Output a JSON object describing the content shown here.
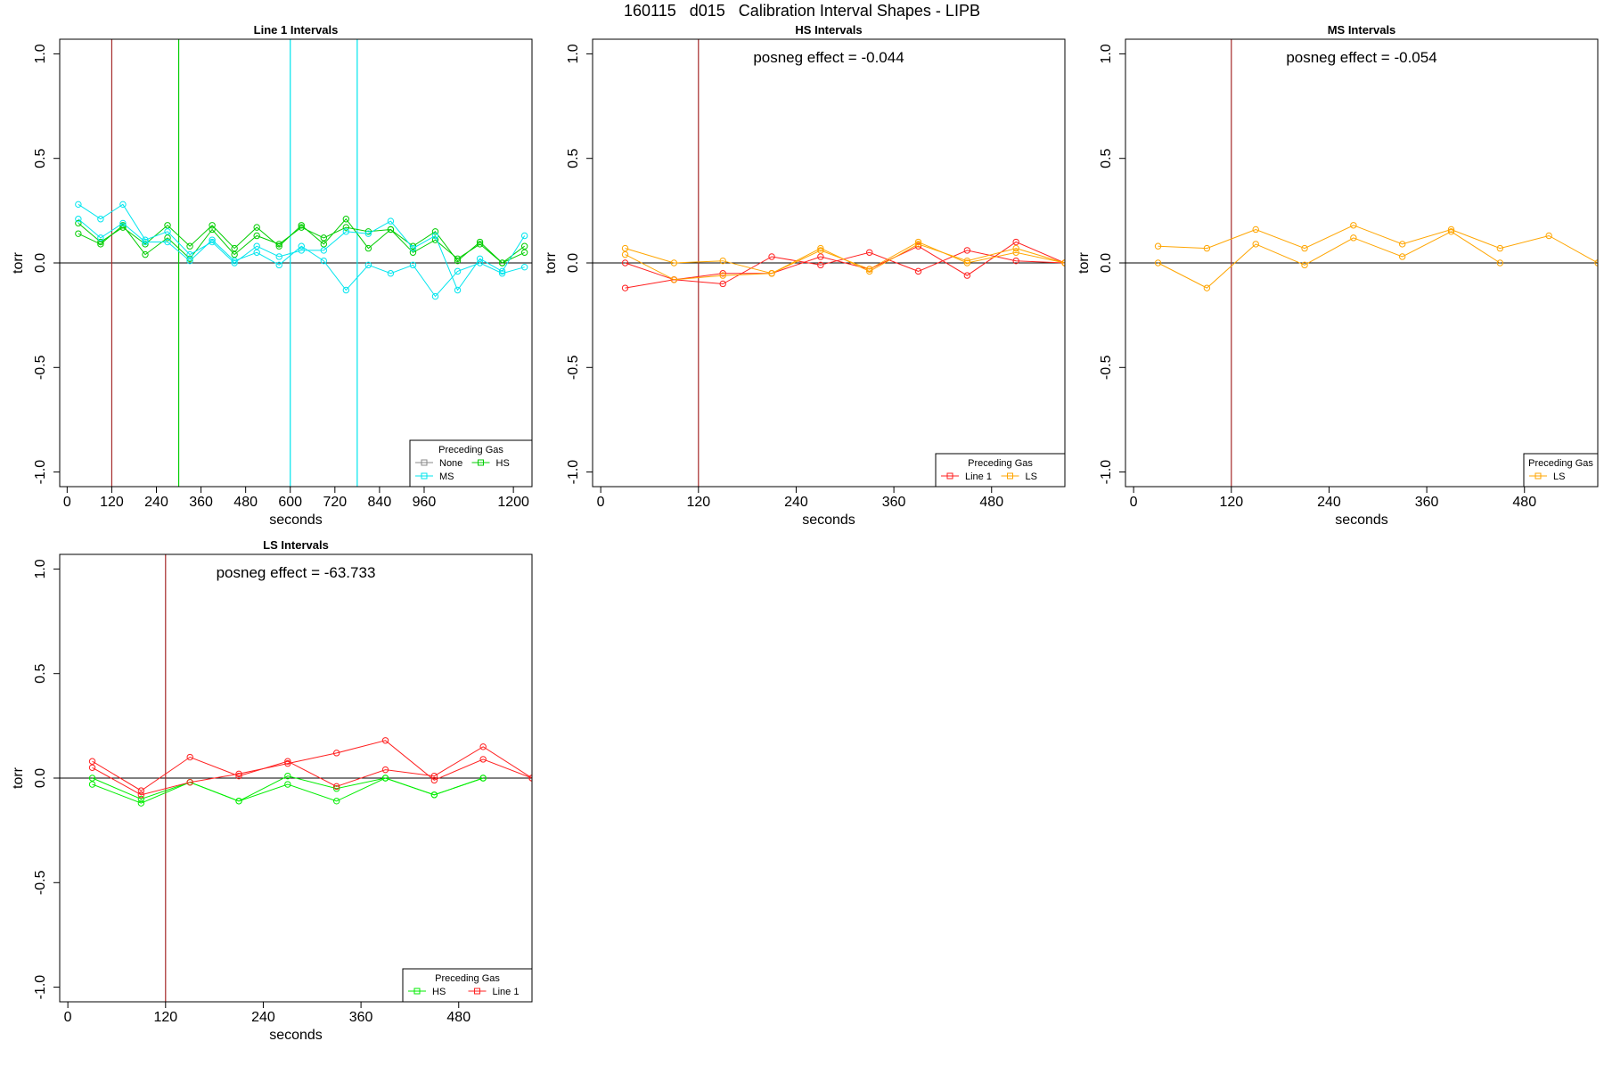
{
  "figure": {
    "title": "160115   d015   Calibration Interval Shapes - LIPB"
  },
  "chart_data": [
    {
      "type": "line",
      "title": "Line 1 Intervals",
      "xlabel": "seconds",
      "ylabel": "torr",
      "xlim": [
        -20,
        1250
      ],
      "ylim": [
        -1.07,
        1.07
      ],
      "xticks": [
        0,
        120,
        240,
        360,
        480,
        600,
        720,
        840,
        960,
        1200
      ],
      "yticks": [
        -1.0,
        -0.5,
        0.0,
        0.5,
        1.0
      ],
      "ytick_labels": [
        "-1.0",
        "-0.5",
        "0.0",
        "0.5",
        "1.0"
      ],
      "hline": 0,
      "vlines": [
        {
          "x": 120,
          "color": "#a52a2a"
        },
        {
          "x": 300,
          "color": "#00cd00"
        },
        {
          "x": 600,
          "color": "#00e5ee"
        },
        {
          "x": 780,
          "color": "#00e5ee"
        }
      ],
      "annotation": "",
      "legend": {
        "title": "Preceding Gas",
        "position": "bottom-right",
        "columns": 2,
        "entries": [
          {
            "name": "None",
            "color": "#888888"
          },
          {
            "name": "HS",
            "color": "#00cd00"
          },
          {
            "name": "MS",
            "color": "#00e5ee"
          }
        ]
      },
      "series": [
        {
          "name": "HS",
          "color": "#00cd00",
          "x": [
            30,
            90,
            150,
            210,
            270,
            330,
            390,
            450,
            510,
            570,
            630,
            690,
            750,
            810,
            870,
            930,
            990,
            1050,
            1110,
            1170,
            1230
          ],
          "y": [
            0.19,
            0.1,
            0.17,
            0.09,
            0.18,
            0.08,
            0.18,
            0.07,
            0.17,
            0.08,
            0.18,
            0.09,
            0.21,
            0.07,
            0.16,
            0.08,
            0.15,
            0.01,
            0.1,
            0.0,
            0.08
          ]
        },
        {
          "name": "HS",
          "color": "#00cd00",
          "x": [
            30,
            90,
            150,
            210,
            270,
            330,
            390,
            450,
            510,
            570,
            630,
            690,
            750,
            810,
            870,
            930,
            990,
            1050,
            1110,
            1170,
            1230
          ],
          "y": [
            0.14,
            0.09,
            0.18,
            0.04,
            0.12,
            0.02,
            0.16,
            0.04,
            0.13,
            0.09,
            0.17,
            0.12,
            0.17,
            0.15,
            0.16,
            0.05,
            0.11,
            0.02,
            0.09,
            0.0,
            0.05
          ]
        },
        {
          "name": "MS",
          "color": "#00e5ee",
          "x": [
            30,
            90,
            150,
            210,
            270,
            330,
            390,
            450,
            510,
            570,
            630,
            690,
            750,
            810,
            870,
            930,
            990,
            1050,
            1110,
            1170,
            1230
          ],
          "y": [
            0.28,
            0.21,
            0.28,
            0.11,
            0.15,
            0.04,
            0.1,
            0.0,
            0.08,
            0.03,
            0.06,
            0.06,
            0.15,
            0.14,
            0.2,
            0.07,
            0.13,
            -0.13,
            0.02,
            -0.04,
            0.13
          ]
        },
        {
          "name": "MS",
          "color": "#00e5ee",
          "x": [
            30,
            90,
            150,
            210,
            270,
            330,
            390,
            450,
            510,
            570,
            630,
            690,
            750,
            810,
            870,
            930,
            990,
            1050,
            1110,
            1170,
            1230
          ],
          "y": [
            0.21,
            0.12,
            0.19,
            0.1,
            0.1,
            0.01,
            0.11,
            0.01,
            0.05,
            -0.01,
            0.08,
            0.01,
            -0.13,
            -0.01,
            -0.05,
            -0.01,
            -0.16,
            -0.04,
            0.0,
            -0.05,
            -0.02
          ]
        }
      ]
    },
    {
      "type": "line",
      "title": "HS Intervals",
      "xlabel": "seconds",
      "ylabel": "torr",
      "xlim": [
        -10,
        570
      ],
      "ylim": [
        -1.07,
        1.07
      ],
      "xticks": [
        0,
        120,
        240,
        360,
        480
      ],
      "yticks": [
        -1.0,
        -0.5,
        0.0,
        0.5,
        1.0
      ],
      "ytick_labels": [
        "-1.0",
        "-0.5",
        "0.0",
        "0.5",
        "1.0"
      ],
      "hline": 0,
      "vlines": [
        {
          "x": 120,
          "color": "#a52a2a"
        }
      ],
      "annotation": "posneg effect = -0.044",
      "legend": {
        "title": "Preceding Gas",
        "position": "bottom-right",
        "columns": 2,
        "entries": [
          {
            "name": "Line 1",
            "color": "#ff2020"
          },
          {
            "name": "LS",
            "color": "#ffa500"
          }
        ]
      },
      "series": [
        {
          "name": "Line 1",
          "color": "#ff2020",
          "x": [
            30,
            90,
            150,
            210,
            270,
            330,
            390,
            450,
            510,
            570
          ],
          "y": [
            -0.12,
            -0.08,
            -0.1,
            0.03,
            -0.01,
            0.05,
            -0.04,
            0.06,
            0.01,
            0.0
          ]
        },
        {
          "name": "Line 1",
          "color": "#ff2020",
          "x": [
            30,
            90,
            150,
            210,
            270,
            330,
            390,
            450,
            510,
            570
          ],
          "y": [
            0.0,
            -0.08,
            -0.05,
            -0.05,
            0.03,
            -0.03,
            0.08,
            -0.06,
            0.1,
            0.0
          ]
        },
        {
          "name": "LS",
          "color": "#ffa500",
          "x": [
            30,
            90,
            150,
            210,
            270,
            330,
            390,
            450,
            510,
            570
          ],
          "y": [
            0.07,
            0.0,
            0.01,
            -0.05,
            0.07,
            -0.04,
            0.09,
            0.01,
            0.07,
            0.0
          ]
        },
        {
          "name": "LS",
          "color": "#ffa500",
          "x": [
            30,
            90,
            150,
            210,
            270,
            330,
            390,
            450,
            510,
            570
          ],
          "y": [
            0.04,
            -0.08,
            -0.06,
            -0.05,
            0.06,
            -0.03,
            0.1,
            0.0,
            0.05,
            0.0
          ]
        }
      ]
    },
    {
      "type": "line",
      "title": "MS Intervals",
      "xlabel": "seconds",
      "ylabel": "torr",
      "xlim": [
        -10,
        570
      ],
      "ylim": [
        -1.07,
        1.07
      ],
      "xticks": [
        0,
        120,
        240,
        360,
        480
      ],
      "yticks": [
        -1.0,
        -0.5,
        0.0,
        0.5,
        1.0
      ],
      "ytick_labels": [
        "-1.0",
        "-0.5",
        "0.0",
        "0.5",
        "1.0"
      ],
      "hline": 0,
      "vlines": [
        {
          "x": 120,
          "color": "#a52a2a"
        }
      ],
      "annotation": "posneg effect = -0.054",
      "legend": {
        "title": "Preceding Gas",
        "position": "bottom-right",
        "columns": 1,
        "entries": [
          {
            "name": "LS",
            "color": "#ffa500"
          }
        ]
      },
      "series": [
        {
          "name": "LS",
          "color": "#ffa500",
          "x": [
            30,
            90,
            150,
            210,
            270,
            330,
            390,
            450,
            510,
            570
          ],
          "y": [
            0.08,
            0.07,
            0.16,
            0.07,
            0.18,
            0.09,
            0.16,
            0.07,
            0.13,
            0.0
          ]
        },
        {
          "name": "LS",
          "color": "#ffa500",
          "x": [
            30,
            90,
            150,
            210,
            270,
            330,
            390,
            450
          ],
          "y": [
            0.0,
            -0.12,
            0.09,
            -0.01,
            0.12,
            0.03,
            0.15,
            0.0
          ]
        }
      ]
    },
    {
      "type": "line",
      "title": "LS Intervals",
      "xlabel": "seconds",
      "ylabel": "torr",
      "xlim": [
        -10,
        570
      ],
      "ylim": [
        -1.07,
        1.07
      ],
      "xticks": [
        0,
        120,
        240,
        360,
        480
      ],
      "yticks": [
        -1.0,
        -0.5,
        0.0,
        0.5,
        1.0
      ],
      "ytick_labels": [
        "-1.0",
        "-0.5",
        "0.0",
        "0.5",
        "1.0"
      ],
      "hline": 0,
      "vlines": [
        {
          "x": 120,
          "color": "#a52a2a"
        }
      ],
      "annotation": "posneg effect = -63.733",
      "legend": {
        "title": "Preceding Gas",
        "position": "bottom-right",
        "columns": 2,
        "entries": [
          {
            "name": "HS",
            "color": "#00ee00"
          },
          {
            "name": "Line 1",
            "color": "#ff2020"
          }
        ]
      },
      "series": [
        {
          "name": "HS",
          "color": "#00ee00",
          "x": [
            30,
            90,
            150,
            210,
            270,
            330,
            390,
            450,
            510
          ],
          "y": [
            -0.03,
            -0.12,
            -0.02,
            -0.11,
            -0.03,
            -0.11,
            0.0,
            -0.08,
            0.0
          ]
        },
        {
          "name": "HS",
          "color": "#00ee00",
          "x": [
            30,
            90,
            150,
            210,
            270,
            330,
            390,
            450,
            510
          ],
          "y": [
            0.0,
            -0.1,
            -0.02,
            -0.11,
            0.01,
            -0.05,
            0.0,
            -0.08,
            0.0
          ]
        },
        {
          "name": "Line 1",
          "color": "#ff2020",
          "x": [
            30,
            90,
            150,
            210,
            270,
            330,
            390,
            450,
            510,
            570
          ],
          "y": [
            0.08,
            -0.06,
            0.1,
            0.01,
            0.08,
            -0.04,
            0.04,
            0.01,
            0.15,
            0.0
          ]
        },
        {
          "name": "Line 1",
          "color": "#ff2020",
          "x": [
            30,
            90,
            150,
            210,
            270,
            330,
            390,
            450,
            510,
            570
          ],
          "y": [
            0.05,
            -0.08,
            -0.02,
            0.02,
            0.07,
            0.12,
            0.18,
            -0.01,
            0.09,
            0.0
          ]
        }
      ]
    }
  ]
}
